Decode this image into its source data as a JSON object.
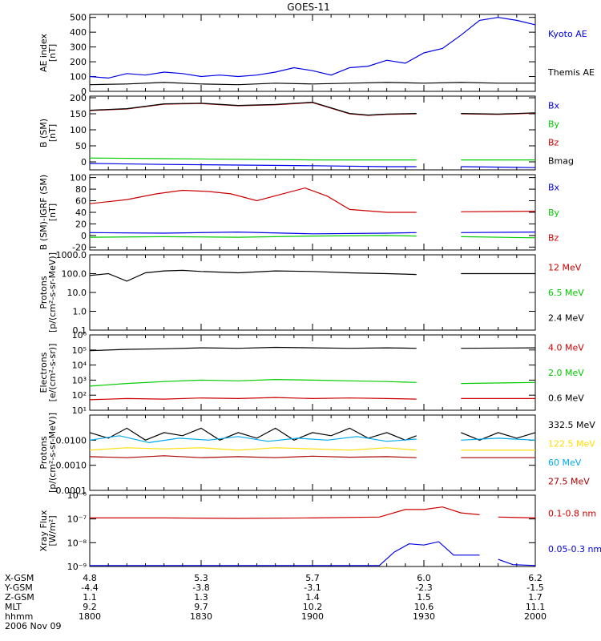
{
  "title": "GOES-11",
  "colors": {
    "black": "#000000",
    "blue": "#0000e6",
    "green": "#00cc00",
    "red": "#cc0000",
    "darkred": "#aa0000",
    "yellow": "#ffdd00",
    "cyan": "#00aaee"
  },
  "time_axis": {
    "row_labels": [
      "X-GSM",
      "Y-GSM",
      "Z-GSM",
      "MLT",
      "hhmm",
      "2006 Nov 09"
    ],
    "columns": [
      {
        "x_gsm": "4.8",
        "y_gsm": "-4.4",
        "z_gsm": "1.1",
        "mlt": "9.2",
        "hhmm": "1800"
      },
      {
        "x_gsm": "5.3",
        "y_gsm": "-3.8",
        "z_gsm": "1.3",
        "mlt": "9.7",
        "hhmm": "1830"
      },
      {
        "x_gsm": "5.7",
        "y_gsm": "-3.1",
        "z_gsm": "1.4",
        "mlt": "10.2",
        "hhmm": "1900"
      },
      {
        "x_gsm": "6.0",
        "y_gsm": "-2.3",
        "z_gsm": "1.5",
        "mlt": "10.6",
        "hhmm": "1930"
      },
      {
        "x_gsm": "6.2",
        "y_gsm": "-1.5",
        "z_gsm": "1.7",
        "mlt": "11.1",
        "hhmm": "2000"
      }
    ]
  },
  "chart_data": [
    {
      "type": "line",
      "ylabel": [
        "AE index",
        "[nT]"
      ],
      "ylim": [
        0,
        520
      ],
      "scale": "linear",
      "yticks": [
        0,
        100,
        200,
        300,
        400,
        500
      ],
      "yticklabels": [
        "0",
        "100",
        "200",
        "300",
        "400",
        "500"
      ],
      "series": [
        {
          "name": "Kyoto AE",
          "color": "#0000e6",
          "x": [
            0,
            5,
            10,
            15,
            20,
            25,
            30,
            35,
            40,
            45,
            50,
            55,
            60,
            65,
            70,
            75,
            80,
            85,
            90,
            95,
            100,
            105,
            110,
            115,
            120
          ],
          "y": [
            100,
            90,
            120,
            110,
            130,
            120,
            100,
            110,
            100,
            110,
            130,
            160,
            140,
            110,
            160,
            170,
            210,
            190,
            260,
            290,
            380,
            480,
            500,
            480,
            450
          ]
        },
        {
          "name": "Themis AE",
          "color": "#000000",
          "x": [
            0,
            10,
            20,
            30,
            40,
            50,
            60,
            70,
            80,
            90,
            100,
            110,
            120
          ],
          "y": [
            45,
            50,
            60,
            50,
            45,
            55,
            50,
            55,
            60,
            55,
            60,
            55,
            55
          ]
        }
      ]
    },
    {
      "type": "line",
      "ylabel": [
        "B (SM)",
        "[nT]"
      ],
      "ylim": [
        -25,
        205
      ],
      "scale": "linear",
      "yticks": [
        0,
        50,
        100,
        150,
        200
      ],
      "yticklabels": [
        "0",
        "50",
        "100",
        "150",
        "200"
      ],
      "series": [
        {
          "name": "Bx",
          "color": "#0000e6",
          "x": [
            0,
            20,
            40,
            60,
            80,
            88,
            92,
            100,
            120
          ],
          "y": [
            -5,
            -8,
            -10,
            -12,
            -15,
            -15,
            null,
            -15,
            -18
          ]
        },
        {
          "name": "By",
          "color": "#00cc00",
          "x": [
            0,
            20,
            40,
            60,
            80,
            88,
            92,
            100,
            120
          ],
          "y": [
            12,
            10,
            8,
            6,
            6,
            6,
            null,
            6,
            6
          ]
        },
        {
          "name": "Bz",
          "color": "#cc0000",
          "x": [
            0,
            10,
            20,
            30,
            40,
            50,
            60,
            70,
            75,
            80,
            88,
            92,
            100,
            110,
            120
          ],
          "y": [
            160,
            165,
            180,
            182,
            175,
            178,
            185,
            150,
            145,
            148,
            150,
            null,
            150,
            148,
            152
          ]
        },
        {
          "name": "Bmag",
          "color": "#000000",
          "x": [
            0,
            10,
            20,
            30,
            40,
            50,
            60,
            70,
            75,
            80,
            88,
            92,
            100,
            110,
            120
          ],
          "y": [
            161,
            166,
            181,
            183,
            176,
            179,
            186,
            151,
            146,
            149,
            151,
            null,
            151,
            149,
            153
          ]
        }
      ]
    },
    {
      "type": "line",
      "ylabel": [
        "B (SM)-IGRF (SM)",
        "[nT]"
      ],
      "ylim": [
        -25,
        105
      ],
      "scale": "linear",
      "yticks": [
        -20,
        0,
        20,
        40,
        60,
        80,
        100
      ],
      "yticklabels": [
        "-20",
        "0",
        "20",
        "40",
        "60",
        "80",
        "100"
      ],
      "series": [
        {
          "name": "Bx",
          "color": "#0000e6",
          "x": [
            0,
            20,
            40,
            60,
            80,
            88,
            92,
            100,
            120
          ],
          "y": [
            5,
            4,
            6,
            3,
            4,
            5,
            null,
            5,
            6
          ]
        },
        {
          "name": "By",
          "color": "#00cc00",
          "x": [
            0,
            20,
            40,
            60,
            80,
            88,
            92,
            100,
            120
          ],
          "y": [
            -3,
            -2,
            -3,
            -1,
            0,
            -1,
            null,
            -2,
            -4
          ]
        },
        {
          "name": "Bz",
          "color": "#cc0000",
          "x": [
            0,
            10,
            18,
            25,
            32,
            38,
            45,
            52,
            58,
            64,
            70,
            80,
            88,
            92,
            100,
            120
          ],
          "y": [
            55,
            62,
            72,
            78,
            76,
            72,
            60,
            72,
            82,
            68,
            45,
            40,
            40,
            null,
            41,
            42
          ]
        }
      ]
    },
    {
      "type": "line",
      "ylabel": [
        "Protons",
        "[p/(cm²-s-sr-MeV)]"
      ],
      "ylim": [
        0.1,
        1000
      ],
      "scale": "log",
      "yticks": [
        0.1,
        1,
        10,
        100,
        1000
      ],
      "yticklabels": [
        "0.1",
        "1.0",
        "10.0",
        "100.0",
        "1000.0"
      ],
      "series": [
        {
          "name": "12 MeV",
          "color": "#cc0000",
          "x": [],
          "y": []
        },
        {
          "name": "6.5 MeV",
          "color": "#00cc00",
          "x": [],
          "y": []
        },
        {
          "name": "2.4 MeV",
          "color": "#000000",
          "x": [
            0,
            5,
            10,
            15,
            20,
            25,
            30,
            40,
            50,
            60,
            70,
            80,
            88,
            92,
            100,
            120
          ],
          "y": [
            80,
            100,
            40,
            110,
            140,
            150,
            130,
            110,
            140,
            130,
            110,
            100,
            90,
            null,
            100,
            100
          ]
        }
      ]
    },
    {
      "type": "line",
      "ylabel": [
        "Electrons",
        "[e/(cm²-s-sr)]"
      ],
      "ylim": [
        10,
        1000000
      ],
      "scale": "log",
      "yticks": [
        10,
        100,
        1000,
        10000,
        100000,
        1000000
      ],
      "yticklabels": [
        "10¹",
        "10²",
        "10³",
        "10⁴",
        "10⁵",
        "10⁶"
      ],
      "series": [
        {
          "name": "4.0 MeV",
          "color": "#cc0000",
          "x": [
            0,
            10,
            20,
            30,
            40,
            50,
            60,
            70,
            80,
            88,
            92,
            100,
            120
          ],
          "y": [
            50,
            60,
            55,
            65,
            60,
            70,
            60,
            65,
            60,
            55,
            null,
            60,
            60
          ]
        },
        {
          "name": "2.0 MeV",
          "color": "#00cc00",
          "x": [
            0,
            10,
            20,
            30,
            40,
            50,
            60,
            70,
            80,
            88,
            92,
            100,
            120
          ],
          "y": [
            400,
            600,
            800,
            1000,
            900,
            1100,
            1000,
            900,
            800,
            700,
            null,
            600,
            700
          ]
        },
        {
          "name": "0.6 MeV",
          "color": "#000000",
          "x": [
            0,
            10,
            20,
            30,
            40,
            50,
            60,
            70,
            80,
            88,
            92,
            100,
            120
          ],
          "y": [
            90000,
            110000,
            120000,
            140000,
            130000,
            150000,
            140000,
            130000,
            140000,
            130000,
            null,
            130000,
            140000
          ]
        }
      ]
    },
    {
      "type": "line",
      "ylabel": [
        "Protons",
        "[p/(cm²-s-sr-MeV)]"
      ],
      "ylim": [
        0.0001,
        0.1
      ],
      "scale": "log",
      "yticks": [
        0.0001,
        0.001,
        0.01,
        0.1
      ],
      "yticklabels": [
        "0.0001",
        "0.0010",
        "0.0100",
        ""
      ],
      "series": [
        {
          "name": "332.5 MeV",
          "color": "#000000",
          "x": [
            0,
            5,
            10,
            15,
            20,
            25,
            30,
            35,
            40,
            45,
            50,
            55,
            60,
            65,
            70,
            75,
            80,
            85,
            88,
            92,
            100,
            105,
            110,
            115,
            120
          ],
          "y": [
            0.02,
            0.012,
            0.03,
            0.01,
            0.02,
            0.015,
            0.03,
            0.01,
            0.02,
            0.012,
            0.03,
            0.01,
            0.02,
            0.015,
            0.03,
            0.012,
            0.02,
            0.01,
            0.015,
            null,
            0.02,
            0.01,
            0.02,
            0.012,
            0.02
          ]
        },
        {
          "name": "122.5 MeV",
          "color": "#ffdd00",
          "x": [
            0,
            10,
            20,
            30,
            40,
            50,
            60,
            70,
            80,
            88,
            92,
            100,
            120
          ],
          "y": [
            0.004,
            0.005,
            0.0045,
            0.005,
            0.004,
            0.005,
            0.0045,
            0.004,
            0.005,
            0.004,
            null,
            0.004,
            0.004
          ]
        },
        {
          "name": "60 MeV",
          "color": "#00aaee",
          "x": [
            0,
            8,
            16,
            24,
            32,
            40,
            48,
            56,
            64,
            72,
            80,
            88,
            92,
            100,
            110,
            120
          ],
          "y": [
            0.01,
            0.015,
            0.008,
            0.012,
            0.01,
            0.014,
            0.009,
            0.012,
            0.01,
            0.014,
            0.009,
            0.011,
            null,
            0.01,
            0.012,
            0.01
          ]
        },
        {
          "name": "27.5 MeV",
          "color": "#aa0000",
          "x": [
            0,
            10,
            20,
            30,
            40,
            50,
            60,
            70,
            80,
            88,
            92,
            100,
            120
          ],
          "y": [
            0.0022,
            0.002,
            0.0024,
            0.002,
            0.0022,
            0.002,
            0.0023,
            0.0021,
            0.0022,
            0.002,
            null,
            0.002,
            0.002
          ]
        }
      ]
    },
    {
      "type": "line",
      "ylabel": [
        "Xray Flux",
        "[W/m²]"
      ],
      "ylim": [
        1e-09,
        1e-06
      ],
      "scale": "log",
      "yticks": [
        1e-09,
        1e-08,
        1e-07,
        1e-06
      ],
      "yticklabels": [
        "10⁻⁹",
        "10⁻⁸",
        "10⁻⁷",
        "10⁻⁶"
      ],
      "series": [
        {
          "name": "0.1-0.8 nm",
          "color": "#cc0000",
          "x": [
            0,
            20,
            40,
            60,
            78,
            85,
            90,
            95,
            100,
            105,
            108,
            110,
            120
          ],
          "y": [
            1.1e-07,
            1.1e-07,
            1.05e-07,
            1.1e-07,
            1.2e-07,
            2.5e-07,
            2.5e-07,
            3.2e-07,
            1.8e-07,
            1.5e-07,
            null,
            1.2e-07,
            1.1e-07
          ]
        },
        {
          "name": "0.05-0.3 nm",
          "color": "#0000e6",
          "x": [
            0,
            20,
            40,
            60,
            78,
            82,
            86,
            90,
            94,
            98,
            102,
            105,
            108,
            110,
            114,
            120
          ],
          "y": [
            1.1e-09,
            1.1e-09,
            1.1e-09,
            1.1e-09,
            1.1e-09,
            4e-09,
            9e-09,
            8e-09,
            1.1e-08,
            3e-09,
            3e-09,
            3e-09,
            null,
            2e-09,
            1.2e-09,
            1.1e-09
          ]
        }
      ]
    }
  ]
}
